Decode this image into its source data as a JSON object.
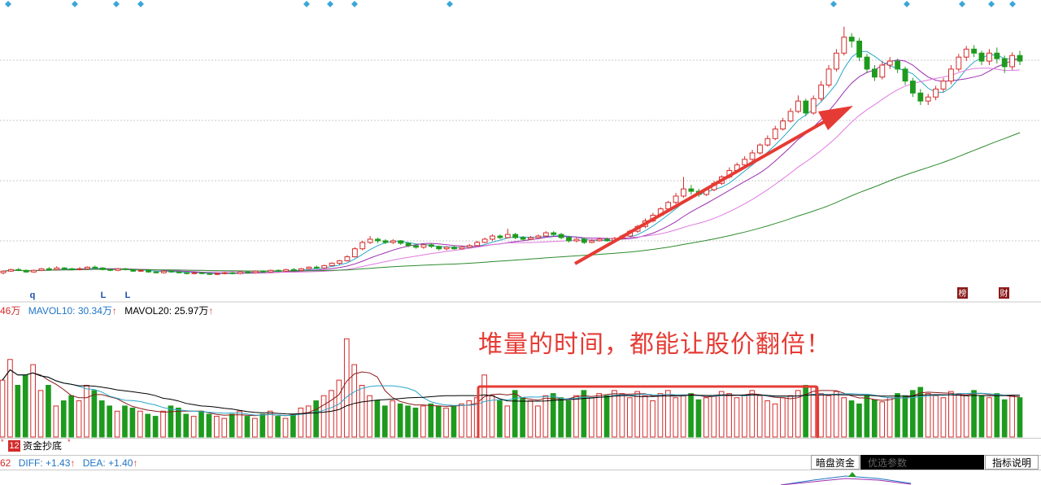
{
  "chart_data": [
    {
      "type": "candlestick",
      "panel": "price",
      "description": "Daily K-line with moving averages",
      "candles": [
        [
          0.4,
          0.42,
          0.43,
          0.38
        ],
        [
          0.42,
          0.44,
          0.45,
          0.41
        ],
        [
          0.44,
          0.43,
          0.46,
          0.42
        ],
        [
          0.43,
          0.41,
          0.44,
          0.4
        ],
        [
          0.41,
          0.43,
          0.44,
          0.4
        ],
        [
          0.43,
          0.45,
          0.46,
          0.42
        ],
        [
          0.45,
          0.44,
          0.47,
          0.43
        ],
        [
          0.44,
          0.46,
          0.48,
          0.43
        ],
        [
          0.46,
          0.45,
          0.47,
          0.44
        ],
        [
          0.45,
          0.44,
          0.46,
          0.43
        ],
        [
          0.44,
          0.45,
          0.47,
          0.43
        ],
        [
          0.45,
          0.47,
          0.48,
          0.44
        ],
        [
          0.47,
          0.46,
          0.49,
          0.45
        ],
        [
          0.46,
          0.44,
          0.47,
          0.43
        ],
        [
          0.44,
          0.43,
          0.45,
          0.42
        ],
        [
          0.43,
          0.45,
          0.46,
          0.42
        ],
        [
          0.45,
          0.44,
          0.46,
          0.43
        ],
        [
          0.44,
          0.42,
          0.45,
          0.41
        ],
        [
          0.42,
          0.43,
          0.44,
          0.41
        ],
        [
          0.43,
          0.41,
          0.44,
          0.4
        ],
        [
          0.41,
          0.4,
          0.42,
          0.39
        ],
        [
          0.4,
          0.42,
          0.43,
          0.39
        ],
        [
          0.42,
          0.41,
          0.43,
          0.4
        ],
        [
          0.41,
          0.4,
          0.42,
          0.39
        ],
        [
          0.4,
          0.39,
          0.41,
          0.38
        ],
        [
          0.39,
          0.4,
          0.41,
          0.38
        ],
        [
          0.4,
          0.39,
          0.41,
          0.38
        ],
        [
          0.39,
          0.38,
          0.4,
          0.37
        ],
        [
          0.38,
          0.39,
          0.4,
          0.37
        ],
        [
          0.39,
          0.4,
          0.41,
          0.38
        ],
        [
          0.4,
          0.39,
          0.41,
          0.38
        ],
        [
          0.39,
          0.41,
          0.42,
          0.38
        ],
        [
          0.41,
          0.4,
          0.42,
          0.39
        ],
        [
          0.4,
          0.42,
          0.43,
          0.39
        ],
        [
          0.42,
          0.41,
          0.43,
          0.4
        ],
        [
          0.41,
          0.43,
          0.44,
          0.4
        ],
        [
          0.43,
          0.42,
          0.44,
          0.41
        ],
        [
          0.42,
          0.44,
          0.45,
          0.41
        ],
        [
          0.44,
          0.43,
          0.46,
          0.42
        ],
        [
          0.43,
          0.45,
          0.46,
          0.42
        ],
        [
          0.45,
          0.47,
          0.48,
          0.44
        ],
        [
          0.47,
          0.46,
          0.49,
          0.45
        ],
        [
          0.46,
          0.49,
          0.5,
          0.45
        ],
        [
          0.49,
          0.52,
          0.53,
          0.48
        ],
        [
          0.52,
          0.55,
          0.56,
          0.5
        ],
        [
          0.55,
          0.6,
          0.62,
          0.54
        ],
        [
          0.6,
          0.7,
          0.72,
          0.59
        ],
        [
          0.7,
          0.78,
          0.8,
          0.68
        ],
        [
          0.78,
          0.82,
          0.86,
          0.76
        ],
        [
          0.82,
          0.8,
          0.84,
          0.77
        ],
        [
          0.8,
          0.78,
          0.82,
          0.76
        ],
        [
          0.78,
          0.8,
          0.82,
          0.76
        ],
        [
          0.8,
          0.77,
          0.81,
          0.75
        ],
        [
          0.77,
          0.74,
          0.78,
          0.72
        ],
        [
          0.74,
          0.72,
          0.76,
          0.7
        ],
        [
          0.72,
          0.75,
          0.76,
          0.7
        ],
        [
          0.75,
          0.73,
          0.77,
          0.71
        ],
        [
          0.73,
          0.7,
          0.74,
          0.68
        ],
        [
          0.7,
          0.72,
          0.73,
          0.68
        ],
        [
          0.72,
          0.7,
          0.74,
          0.69
        ],
        [
          0.7,
          0.72,
          0.74,
          0.69
        ],
        [
          0.72,
          0.74,
          0.76,
          0.71
        ],
        [
          0.74,
          0.78,
          0.8,
          0.73
        ],
        [
          0.78,
          0.82,
          0.84,
          0.77
        ],
        [
          0.82,
          0.86,
          0.88,
          0.8
        ],
        [
          0.86,
          0.84,
          0.88,
          0.82
        ],
        [
          0.84,
          0.88,
          0.95,
          0.83
        ],
        [
          0.88,
          0.84,
          0.9,
          0.82
        ],
        [
          0.84,
          0.82,
          0.86,
          0.8
        ],
        [
          0.82,
          0.84,
          0.86,
          0.81
        ],
        [
          0.84,
          0.86,
          0.88,
          0.83
        ],
        [
          0.86,
          0.9,
          0.92,
          0.85
        ],
        [
          0.9,
          0.88,
          0.92,
          0.86
        ],
        [
          0.88,
          0.84,
          0.9,
          0.82
        ],
        [
          0.84,
          0.8,
          0.86,
          0.78
        ],
        [
          0.8,
          0.82,
          0.84,
          0.78
        ],
        [
          0.82,
          0.78,
          0.84,
          0.76
        ],
        [
          0.78,
          0.8,
          0.82,
          0.77
        ],
        [
          0.8,
          0.82,
          0.84,
          0.79
        ],
        [
          0.82,
          0.8,
          0.84,
          0.79
        ],
        [
          0.8,
          0.83,
          0.85,
          0.79
        ],
        [
          0.83,
          0.86,
          0.88,
          0.82
        ],
        [
          0.86,
          0.92,
          0.94,
          0.85
        ],
        [
          0.92,
          0.98,
          1.0,
          0.9
        ],
        [
          0.98,
          1.05,
          1.08,
          0.96
        ],
        [
          1.05,
          1.12,
          1.15,
          1.03
        ],
        [
          1.12,
          1.2,
          1.22,
          1.1
        ],
        [
          1.2,
          1.28,
          1.3,
          1.18
        ],
        [
          1.28,
          1.36,
          1.4,
          1.26
        ],
        [
          1.36,
          1.45,
          1.6,
          1.34
        ],
        [
          1.45,
          1.42,
          1.5,
          1.38
        ],
        [
          1.42,
          1.38,
          1.45,
          1.35
        ],
        [
          1.38,
          1.44,
          1.46,
          1.36
        ],
        [
          1.44,
          1.52,
          1.55,
          1.42
        ],
        [
          1.52,
          1.6,
          1.62,
          1.5
        ],
        [
          1.6,
          1.68,
          1.72,
          1.58
        ],
        [
          1.68,
          1.75,
          1.78,
          1.66
        ],
        [
          1.75,
          1.82,
          1.86,
          1.73
        ],
        [
          1.82,
          1.9,
          1.94,
          1.8
        ],
        [
          1.9,
          2.0,
          2.02,
          1.88
        ],
        [
          2.0,
          2.08,
          2.12,
          1.98
        ],
        [
          2.08,
          2.2,
          2.24,
          2.06
        ],
        [
          2.2,
          2.3,
          2.34,
          2.18
        ],
        [
          2.3,
          2.42,
          2.46,
          2.28
        ],
        [
          2.42,
          2.55,
          2.62,
          2.4
        ],
        [
          2.55,
          2.4,
          2.58,
          2.36
        ],
        [
          2.4,
          2.58,
          2.62,
          2.38
        ],
        [
          2.58,
          2.75,
          2.8,
          2.55
        ],
        [
          2.75,
          2.95,
          3.0,
          2.72
        ],
        [
          2.95,
          3.15,
          3.2,
          2.92
        ],
        [
          3.15,
          3.35,
          3.48,
          3.12
        ],
        [
          3.35,
          3.3,
          3.4,
          3.22
        ],
        [
          3.3,
          3.1,
          3.34,
          3.05
        ],
        [
          3.1,
          2.95,
          3.14,
          2.9
        ],
        [
          2.95,
          2.85,
          3.0,
          2.8
        ],
        [
          2.85,
          3.0,
          3.05,
          2.82
        ],
        [
          3.0,
          3.05,
          3.1,
          2.95
        ],
        [
          3.05,
          2.95,
          3.08,
          2.9
        ],
        [
          2.95,
          2.8,
          2.98,
          2.75
        ],
        [
          2.8,
          2.65,
          2.84,
          2.6
        ],
        [
          2.65,
          2.55,
          2.7,
          2.5
        ],
        [
          2.55,
          2.6,
          2.64,
          2.5
        ],
        [
          2.6,
          2.7,
          2.74,
          2.56
        ],
        [
          2.7,
          2.8,
          2.84,
          2.66
        ],
        [
          2.8,
          2.95,
          3.0,
          2.76
        ],
        [
          2.95,
          3.1,
          3.14,
          2.92
        ],
        [
          3.1,
          3.2,
          3.24,
          3.05
        ],
        [
          3.2,
          3.15,
          3.25,
          3.1
        ],
        [
          3.15,
          3.05,
          3.18,
          3.0
        ],
        [
          3.05,
          3.15,
          3.2,
          3.0
        ],
        [
          3.15,
          3.08,
          3.22,
          3.02
        ],
        [
          3.08,
          2.98,
          3.12,
          2.9
        ],
        [
          2.98,
          3.12,
          3.16,
          2.94
        ],
        [
          3.12,
          3.05,
          3.18,
          3.0
        ]
      ],
      "markers_top": [
        "diamond",
        "diamond",
        "diamond",
        "diamond",
        "diamond",
        "diamond",
        "diamond",
        "diamond",
        "diamond",
        "diamond",
        "diamond",
        "diamond",
        "diamond"
      ],
      "bottom_labels": [
        "q",
        "L",
        "L"
      ],
      "badges": [
        "榜",
        "财"
      ]
    },
    {
      "type": "bar",
      "panel": "volume",
      "header_text": [
        "46万",
        "MAVOL10: 30.34万",
        "MAVOL20: 25.97万"
      ],
      "header_arrows": [
        "↑",
        "↑"
      ],
      "annotation": "堆量的时间，都能让股价翻倍！",
      "values_rel": [
        0.55,
        0.75,
        0.5,
        0.6,
        0.7,
        0.45,
        0.5,
        0.3,
        0.35,
        0.4,
        0.35,
        0.5,
        0.45,
        0.35,
        0.3,
        0.25,
        0.3,
        0.28,
        0.25,
        0.22,
        0.2,
        0.25,
        0.3,
        0.28,
        0.22,
        0.2,
        0.25,
        0.22,
        0.2,
        0.18,
        0.22,
        0.25,
        0.2,
        0.18,
        0.22,
        0.25,
        0.2,
        0.18,
        0.22,
        0.28,
        0.3,
        0.35,
        0.4,
        0.45,
        0.55,
        0.95,
        0.7,
        0.5,
        0.4,
        0.35,
        0.3,
        0.35,
        0.32,
        0.3,
        0.28,
        0.3,
        0.32,
        0.3,
        0.28,
        0.3,
        0.32,
        0.35,
        0.38,
        0.6,
        0.4,
        0.35,
        0.3,
        0.45,
        0.38,
        0.35,
        0.3,
        0.4,
        0.42,
        0.38,
        0.35,
        0.4,
        0.45,
        0.38,
        0.42,
        0.4,
        0.45,
        0.42,
        0.38,
        0.44,
        0.4,
        0.35,
        0.42,
        0.45,
        0.38,
        0.4,
        0.42,
        0.36,
        0.38,
        0.4,
        0.44,
        0.42,
        0.38,
        0.4,
        0.45,
        0.4,
        0.35,
        0.32,
        0.38,
        0.4,
        0.45,
        0.5,
        0.48,
        0.42,
        0.4,
        0.44,
        0.38,
        0.35,
        0.32,
        0.4,
        0.36,
        0.34,
        0.38,
        0.42,
        0.4,
        0.45,
        0.48,
        0.42,
        0.4,
        0.38,
        0.44,
        0.42,
        0.4,
        0.45,
        0.4,
        0.38,
        0.42,
        0.36,
        0.4,
        0.38
      ]
    },
    {
      "type": "line",
      "panel": "macd",
      "header_text": [
        "62",
        "DIFF: +1.43",
        "DEA: +1.40"
      ],
      "header_arrows": [
        "↑",
        "↑"
      ]
    }
  ],
  "tabs": {
    "number": "12",
    "label": "资金抄底"
  },
  "toolbar": {
    "dark_pool": "暗盘资金",
    "param_placeholder": "优选参数",
    "help": "指标说明"
  },
  "colors": {
    "up": "#d42b2b",
    "down": "#1e9a1e",
    "ma_short": "#2aa7c8",
    "ma_mid": "#9b2fb0",
    "ma_long": "#e07ae0",
    "ma_vlong": "#2e8b2e",
    "annotation": "#e53b34",
    "diamond": "#3aa6d8",
    "header_text": "#1f74c7",
    "arrow": "#e53b34"
  }
}
